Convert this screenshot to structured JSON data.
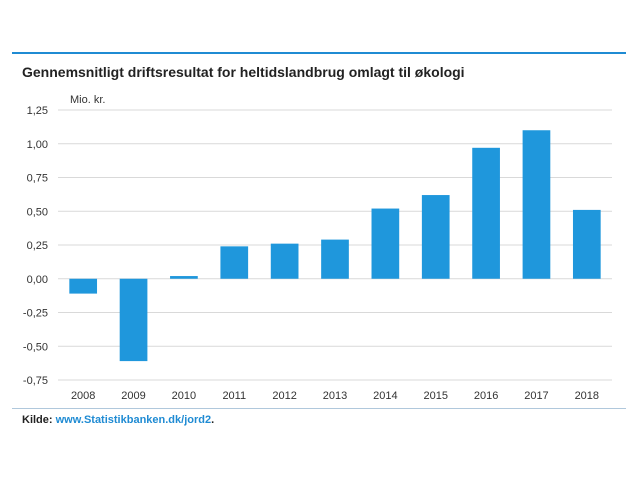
{
  "chart_data": {
    "type": "bar",
    "title": "Gennemsnitligt driftsresultat for heltidslandbrug omlagt til økologi",
    "ylabel": "Mio. kr.",
    "xlabel": "",
    "categories": [
      "2008",
      "2009",
      "2010",
      "2011",
      "2012",
      "2013",
      "2014",
      "2015",
      "2016",
      "2017",
      "2018"
    ],
    "values": [
      -0.11,
      -0.61,
      0.02,
      0.24,
      0.26,
      0.29,
      0.52,
      0.62,
      0.97,
      1.1,
      0.51
    ],
    "ylim": [
      -0.75,
      1.25
    ],
    "yticks": [
      1.25,
      1.0,
      0.75,
      0.5,
      0.25,
      0.0,
      -0.25,
      -0.5,
      -0.75
    ],
    "ytick_labels": [
      "1,25",
      "1,00",
      "0,75",
      "0,50",
      "0,25",
      "0,00",
      "-0,25",
      "-0,50",
      "-0,75"
    ],
    "grid": true,
    "bar_color": "#1f97dc",
    "grid_color": "#d9d9d9"
  },
  "source": {
    "prefix": "Kilde: ",
    "link": "www.Statistikbanken.dk/jord2",
    "suffix": "."
  }
}
